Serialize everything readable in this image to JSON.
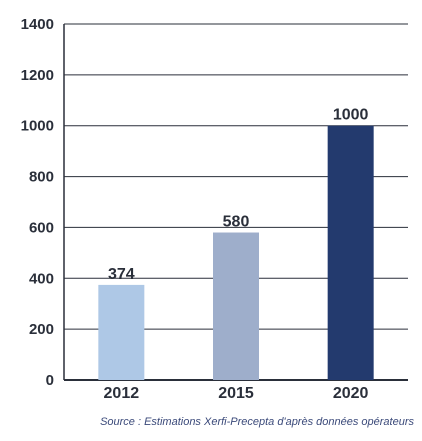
{
  "chart_data": {
    "type": "bar",
    "title": "",
    "xlabel": "",
    "ylabel": "",
    "categories": [
      "2012",
      "2015",
      "2020"
    ],
    "values": [
      374,
      580,
      1000
    ],
    "data_labels": [
      "374",
      "580",
      "1000"
    ],
    "bar_colors": [
      "#aec8e6",
      "#9eaecb",
      "#233a6e"
    ],
    "ylim": [
      0,
      1400
    ],
    "yticks": [
      0,
      200,
      400,
      600,
      800,
      1000,
      1200,
      1400
    ],
    "ytick_labels": [
      "0",
      "200",
      "400",
      "600",
      "800",
      "1000",
      "1200",
      "1400"
    ],
    "grid": true,
    "legend": "none"
  },
  "source": "Source : Estimations Xerfi-Precepta d'après données opérateurs"
}
